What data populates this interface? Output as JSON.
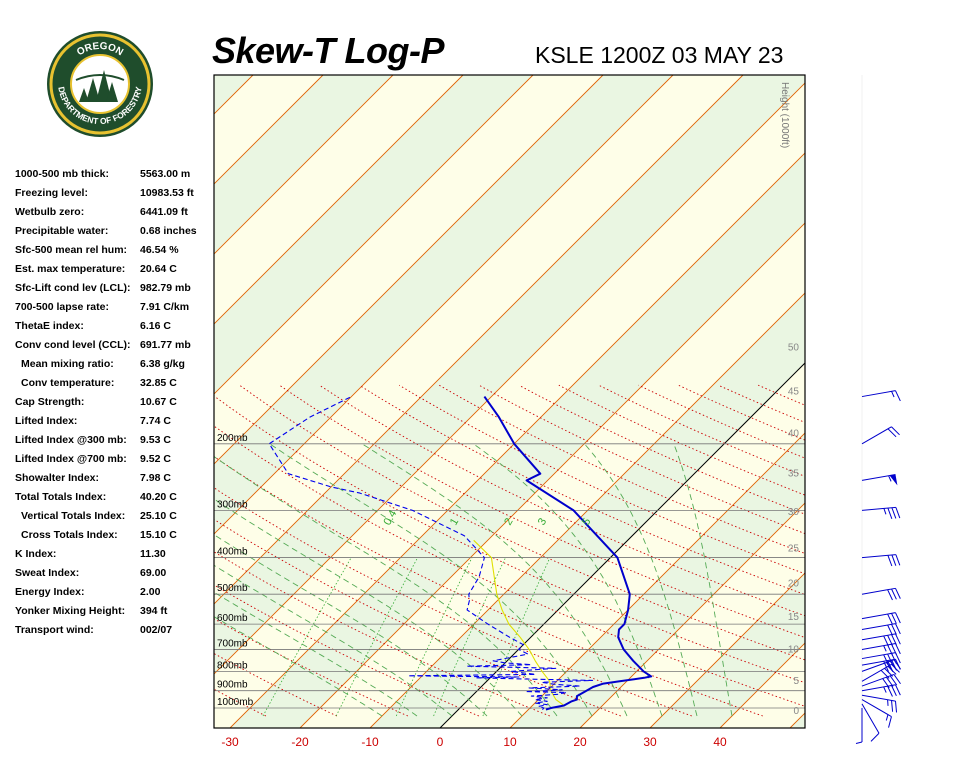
{
  "header": {
    "title": "Skew-T Log-P",
    "station": "KSLE 1200Z 03 MAY 23",
    "logo_top_text": "OREGON",
    "logo_bottom_text": "DEPARTMENT OF FORESTRY"
  },
  "indices": [
    {
      "label": "1000-500 mb thick:",
      "value": "5563.00 m",
      "indent": false
    },
    {
      "label": "Freezing level:",
      "value": "10983.53 ft",
      "indent": false
    },
    {
      "label": "Wetbulb zero:",
      "value": "6441.09 ft",
      "indent": false
    },
    {
      "label": "Precipitable water:",
      "value": "0.68 inches",
      "indent": false
    },
    {
      "label": "Sfc-500 mean rel hum:",
      "value": "46.54 %",
      "indent": false
    },
    {
      "label": "Est. max temperature:",
      "value": "20.64 C",
      "indent": false
    },
    {
      "label": "Sfc-Lift cond lev (LCL):",
      "value": "982.79 mb",
      "indent": false
    },
    {
      "label": "700-500 lapse rate:",
      "value": "7.91 C/km",
      "indent": false
    },
    {
      "label": "ThetaE index:",
      "value": "6.16 C",
      "indent": false
    },
    {
      "label": "Conv cond level (CCL):",
      "value": "691.77 mb",
      "indent": false
    },
    {
      "label": "Mean mixing ratio:",
      "value": "6.38 g/kg",
      "indent": true
    },
    {
      "label": "Conv temperature:",
      "value": "32.85 C",
      "indent": true
    },
    {
      "label": "Cap Strength:",
      "value": "10.67 C",
      "indent": false
    },
    {
      "label": "Lifted Index:",
      "value": "7.74 C",
      "indent": false
    },
    {
      "label": "Lifted Index @300 mb:",
      "value": "9.53 C",
      "indent": false
    },
    {
      "label": "Lifted Index @700 mb:",
      "value": "9.52 C",
      "indent": false
    },
    {
      "label": "Showalter Index:",
      "value": "7.98 C",
      "indent": false
    },
    {
      "label": "Total Totals Index:",
      "value": "40.20 C",
      "indent": false
    },
    {
      "label": "Vertical Totals Index:",
      "value": "25.10 C",
      "indent": true
    },
    {
      "label": "Cross Totals Index:",
      "value": "15.10 C",
      "indent": true
    },
    {
      "label": "K Index:",
      "value": "11.30",
      "indent": false
    },
    {
      "label": "Sweat Index:",
      "value": "69.00",
      "indent": false
    },
    {
      "label": "Energy Index:",
      "value": "2.00",
      "indent": false
    },
    {
      "label": "Yonker Mixing Height:",
      "value": "394 ft",
      "indent": false
    },
    {
      "label": "Transport wind:",
      "value": "002/07",
      "indent": false
    }
  ],
  "chart_data": {
    "type": "line",
    "x_ticks": [
      -30,
      -20,
      -10,
      0,
      10,
      20,
      30,
      40
    ],
    "pressure_levels": [
      {
        "p": 1000,
        "label": "1000mb"
      },
      {
        "p": 900,
        "label": "900mb"
      },
      {
        "p": 800,
        "label": "800mb"
      },
      {
        "p": 700,
        "label": "700mb"
      },
      {
        "p": 600,
        "label": "600mb"
      },
      {
        "p": 500,
        "label": "500mb"
      },
      {
        "p": 400,
        "label": "400mb"
      },
      {
        "p": 300,
        "label": "300mb"
      },
      {
        "p": 200,
        "label": "200mb"
      }
    ],
    "height_label": "Height (1000ft)",
    "height_ticks": [
      {
        "kft": 0,
        "label": "0"
      },
      {
        "kft": 5,
        "label": "5"
      },
      {
        "kft": 10,
        "label": "10"
      },
      {
        "kft": 15,
        "label": "15"
      },
      {
        "kft": 20,
        "label": "20"
      },
      {
        "kft": 25,
        "label": "25"
      },
      {
        "kft": 30,
        "label": "30"
      },
      {
        "kft": 35,
        "label": "35"
      },
      {
        "kft": 40,
        "label": "40"
      },
      {
        "kft": 45,
        "label": "45"
      },
      {
        "kft": 50,
        "label": "50"
      }
    ],
    "mixing_ratio_labels": [
      {
        "w": 0.4,
        "label": "0.4"
      },
      {
        "w": 1,
        "label": "1"
      },
      {
        "w": 2,
        "label": "2"
      },
      {
        "w": 3,
        "label": "3"
      },
      {
        "w": 5,
        "label": "5"
      }
    ],
    "temperature": [
      [
        1010,
        12.5
      ],
      [
        1000,
        13
      ],
      [
        985,
        14.5
      ],
      [
        960,
        15
      ],
      [
        950,
        15.5
      ],
      [
        930,
        15
      ],
      [
        905,
        15.5
      ],
      [
        880,
        16
      ],
      [
        862,
        17
      ],
      [
        850,
        19
      ],
      [
        832,
        22
      ],
      [
        825,
        22.8
      ],
      [
        800,
        21
      ],
      [
        750,
        18
      ],
      [
        700,
        15
      ],
      [
        650,
        12.5
      ],
      [
        620,
        11.5
      ],
      [
        600,
        11.5
      ],
      [
        550,
        10
      ],
      [
        500,
        8
      ],
      [
        400,
        1
      ],
      [
        300,
        -12
      ],
      [
        250,
        -23
      ],
      [
        240,
        -22
      ],
      [
        200,
        -30
      ],
      [
        170,
        -36
      ],
      [
        150,
        -41
      ]
    ],
    "dewpoint": [
      [
        1010,
        12
      ],
      [
        1000,
        12
      ],
      [
        990,
        11
      ],
      [
        980,
        12
      ],
      [
        970,
        10
      ],
      [
        960,
        11.5
      ],
      [
        950,
        9.5
      ],
      [
        940,
        11
      ],
      [
        930,
        8.5
      ],
      [
        920,
        12
      ],
      [
        910,
        13
      ],
      [
        905,
        7
      ],
      [
        900,
        10
      ],
      [
        895,
        12
      ],
      [
        885,
        7
      ],
      [
        875,
        14
      ],
      [
        865,
        10
      ],
      [
        855,
        8
      ],
      [
        845,
        15
      ],
      [
        838,
        5
      ],
      [
        832,
        -2
      ],
      [
        828,
        4
      ],
      [
        822,
        -12
      ],
      [
        815,
        6
      ],
      [
        800,
        2
      ],
      [
        785,
        8
      ],
      [
        775,
        -5
      ],
      [
        768,
        4
      ],
      [
        760,
        0
      ],
      [
        750,
        -2
      ],
      [
        720,
        2
      ],
      [
        700,
        0
      ],
      [
        680,
        0
      ],
      [
        650,
        -3
      ],
      [
        600,
        -8
      ],
      [
        550,
        -13
      ],
      [
        520,
        -14
      ],
      [
        500,
        -15
      ],
      [
        450,
        -16
      ],
      [
        400,
        -18
      ],
      [
        350,
        -24
      ],
      [
        300,
        -35
      ],
      [
        270,
        -45
      ],
      [
        260,
        -50
      ],
      [
        240,
        -58
      ],
      [
        200,
        -65
      ],
      [
        170,
        -63
      ],
      [
        150,
        -60
      ]
    ],
    "parcel": [
      [
        985,
        14.5
      ],
      [
        950,
        12.5
      ],
      [
        900,
        10.5
      ],
      [
        850,
        9
      ],
      [
        800,
        6.5
      ],
      [
        750,
        4
      ],
      [
        700,
        1.5
      ],
      [
        650,
        -1.5
      ],
      [
        600,
        -5
      ],
      [
        550,
        -8
      ],
      [
        500,
        -11
      ],
      [
        400,
        -17
      ],
      [
        360,
        -22
      ]
    ],
    "winds": [
      {
        "p": 1000,
        "dir": 180,
        "spd": 5
      },
      {
        "p": 975,
        "dir": 150,
        "spd": 10
      },
      {
        "p": 950,
        "dir": 120,
        "spd": 15
      },
      {
        "p": 925,
        "dir": 100,
        "spd": 25
      },
      {
        "p": 900,
        "dir": 80,
        "spd": 35
      },
      {
        "p": 875,
        "dir": 70,
        "spd": 40
      },
      {
        "p": 850,
        "dir": 60,
        "spd": 40
      },
      {
        "p": 800,
        "dir": 70,
        "spd": 30
      },
      {
        "p": 770,
        "dir": 80,
        "spd": 40
      },
      {
        "p": 740,
        "dir": 80,
        "spd": 40
      },
      {
        "p": 700,
        "dir": 80,
        "spd": 35
      },
      {
        "p": 660,
        "dir": 80,
        "spd": 40
      },
      {
        "p": 620,
        "dir": 80,
        "spd": 30
      },
      {
        "p": 580,
        "dir": 80,
        "spd": 30
      },
      {
        "p": 500,
        "dir": 80,
        "spd": 30
      },
      {
        "p": 400,
        "dir": 85,
        "spd": 30
      },
      {
        "p": 300,
        "dir": 85,
        "spd": 35
      },
      {
        "p": 250,
        "dir": 80,
        "spd": 55
      },
      {
        "p": 200,
        "dir": 60,
        "spd": 20
      },
      {
        "p": 150,
        "dir": 80,
        "spd": 15
      }
    ]
  },
  "colors": {
    "temperature": "#0000cc",
    "dewpoint": "#0000ee",
    "parcel": "#e0e000",
    "isotherm": "#e06000",
    "dry_adiabat": "#cc0000",
    "moist_adiabat": "#55aa55",
    "mixing_ratio": "#33aa33",
    "isobar": "#777777",
    "axis_label": "#cc0000",
    "zero_isotherm": "#000000",
    "background_light": "#fefee8",
    "background_green": "#eaf6e2"
  }
}
